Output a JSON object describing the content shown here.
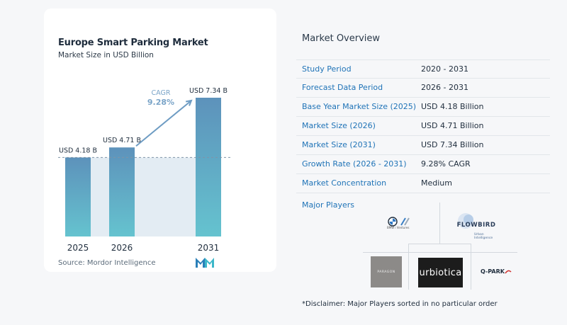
{
  "chart_data": {
    "type": "bar",
    "title": "Europe Smart Parking Market",
    "subtitle": "Market Size in USD Billion",
    "categories": [
      "2025",
      "2026",
      "2031"
    ],
    "values": [
      4.18,
      4.71,
      7.34
    ],
    "data_labels": [
      "USD 4.18 B",
      "USD 4.71 B",
      "USD 7.34 B"
    ],
    "cagr_label": "CAGR",
    "cagr_value": "9.28%",
    "ylim": [
      0,
      7.34
    ],
    "colors": {
      "bar": "#5d92bb",
      "bar_end": "#65c3cf",
      "band": "#e3ecf3",
      "arrow": "#6e9cc3",
      "cagr_text": "#7aa4c8"
    }
  },
  "source": "Source:  Mordor Intelligence",
  "overview": {
    "title": "Market Overview",
    "rows": [
      {
        "label": "Study Period",
        "value": "2020 - 2031"
      },
      {
        "label": "Forecast Data Period",
        "value": "2026 - 2031"
      },
      {
        "label": "Base Year Market Size (2025)",
        "value": "USD 4.18 Billion"
      },
      {
        "label": "Market Size (2026)",
        "value": "USD 4.71 Billion"
      },
      {
        "label": "Market Size (2031)",
        "value": "USD 7.34 Billion"
      },
      {
        "label": "Growth Rate (2026 - 2031)",
        "value": "9.28% CAGR"
      },
      {
        "label": "Market Concentration",
        "value": "Medium"
      }
    ],
    "players_title": "Major Players",
    "players": {
      "bmw_sub": "BMW i Ventures",
      "flowbird": "FLOWBIRD",
      "flowbird_sub": "Urban Intelligence",
      "paragon": "PARAGON",
      "urbiotica": "urbiotica",
      "qpark": "Q-PARK"
    },
    "disclaimer": "*Disclaimer: Major Players sorted in no particular order"
  }
}
